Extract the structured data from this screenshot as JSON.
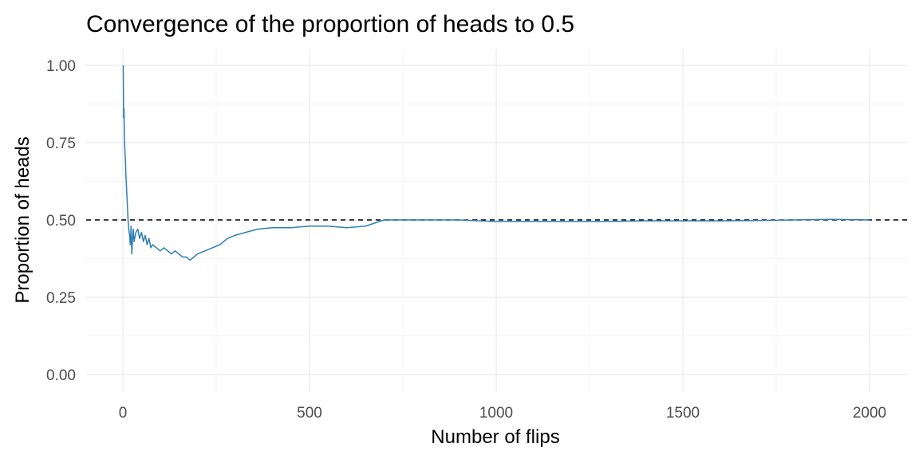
{
  "chart_data": {
    "type": "line",
    "title": "Convergence of the proportion of heads to 0.5",
    "xlabel": "Number of flips",
    "ylabel": "Proportion of heads",
    "xlim": [
      0,
      2000
    ],
    "ylim": [
      0,
      1
    ],
    "x_ticks": [
      0,
      500,
      1000,
      1500,
      2000
    ],
    "x_tick_labels": [
      "0",
      "500",
      "1000",
      "1500",
      "2000"
    ],
    "y_ticks": [
      0,
      0.25,
      0.5,
      0.75,
      1
    ],
    "y_tick_labels": [
      "0.00",
      "0.25",
      "0.50",
      "0.75",
      "1.00"
    ],
    "grid": true,
    "reference_line": {
      "y": 0.5,
      "style": "dashed",
      "color": "#000000"
    },
    "series": [
      {
        "color": "#2e7fb3",
        "x": [
          1,
          2,
          3,
          4,
          5,
          6,
          7,
          8,
          10,
          12,
          14,
          16,
          18,
          20,
          22,
          24,
          26,
          28,
          30,
          35,
          40,
          45,
          50,
          55,
          60,
          65,
          70,
          75,
          80,
          90,
          100,
          110,
          120,
          130,
          140,
          150,
          160,
          170,
          180,
          190,
          200,
          220,
          240,
          260,
          280,
          300,
          330,
          360,
          400,
          450,
          500,
          550,
          600,
          650,
          700,
          750,
          800,
          850,
          900,
          1000,
          1100,
          1200,
          1300,
          1400,
          1500,
          1600,
          1700,
          1800,
          1900,
          2000
        ],
        "y": [
          1.0,
          0.83,
          0.86,
          0.78,
          0.74,
          0.71,
          0.69,
          0.65,
          0.6,
          0.55,
          0.5,
          0.47,
          0.45,
          0.42,
          0.48,
          0.39,
          0.44,
          0.47,
          0.43,
          0.46,
          0.47,
          0.44,
          0.46,
          0.43,
          0.45,
          0.42,
          0.44,
          0.41,
          0.42,
          0.41,
          0.4,
          0.41,
          0.4,
          0.39,
          0.4,
          0.39,
          0.38,
          0.38,
          0.37,
          0.38,
          0.39,
          0.4,
          0.41,
          0.42,
          0.44,
          0.45,
          0.46,
          0.47,
          0.475,
          0.475,
          0.48,
          0.48,
          0.475,
          0.48,
          0.5,
          0.5,
          0.5,
          0.5,
          0.5,
          0.495,
          0.495,
          0.495,
          0.495,
          0.497,
          0.497,
          0.497,
          0.498,
          0.5,
          0.502,
          0.5
        ]
      }
    ]
  }
}
